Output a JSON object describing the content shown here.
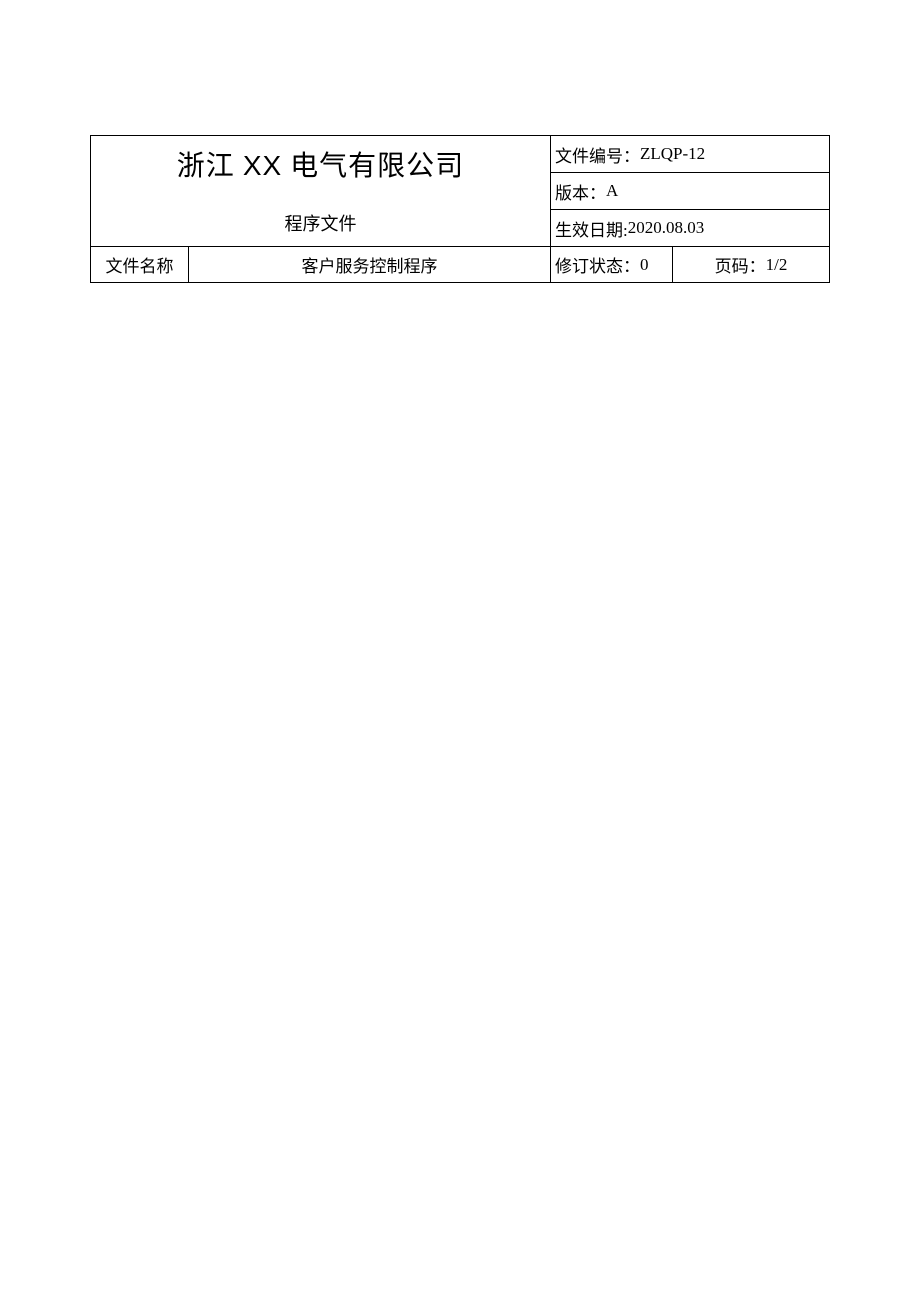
{
  "header": {
    "company_name_prefix": "浙江 ",
    "company_name_xx": "XX",
    "company_name_suffix": " 电气有限公司",
    "doc_type": "程序文件",
    "info": {
      "doc_number_label": "文件编号：",
      "doc_number_value": "ZLQP-12",
      "version_label": "版本：",
      "version_value": "A",
      "effective_date_label": "生效日期:",
      "effective_date_value": "2020.08.03"
    },
    "bottom": {
      "filename_label": "文件名称",
      "filename_value": "客户服务控制程序",
      "revision_label": "修订状态：",
      "revision_value": "0",
      "page_label": "页码：",
      "page_value": "1/2"
    }
  },
  "styling": {
    "border_color": "#000000",
    "border_width": 1.5,
    "background_color": "#ffffff",
    "text_color": "#000000",
    "company_fontsize": 28,
    "body_fontsize": 17,
    "doc_type_fontsize": 18
  }
}
